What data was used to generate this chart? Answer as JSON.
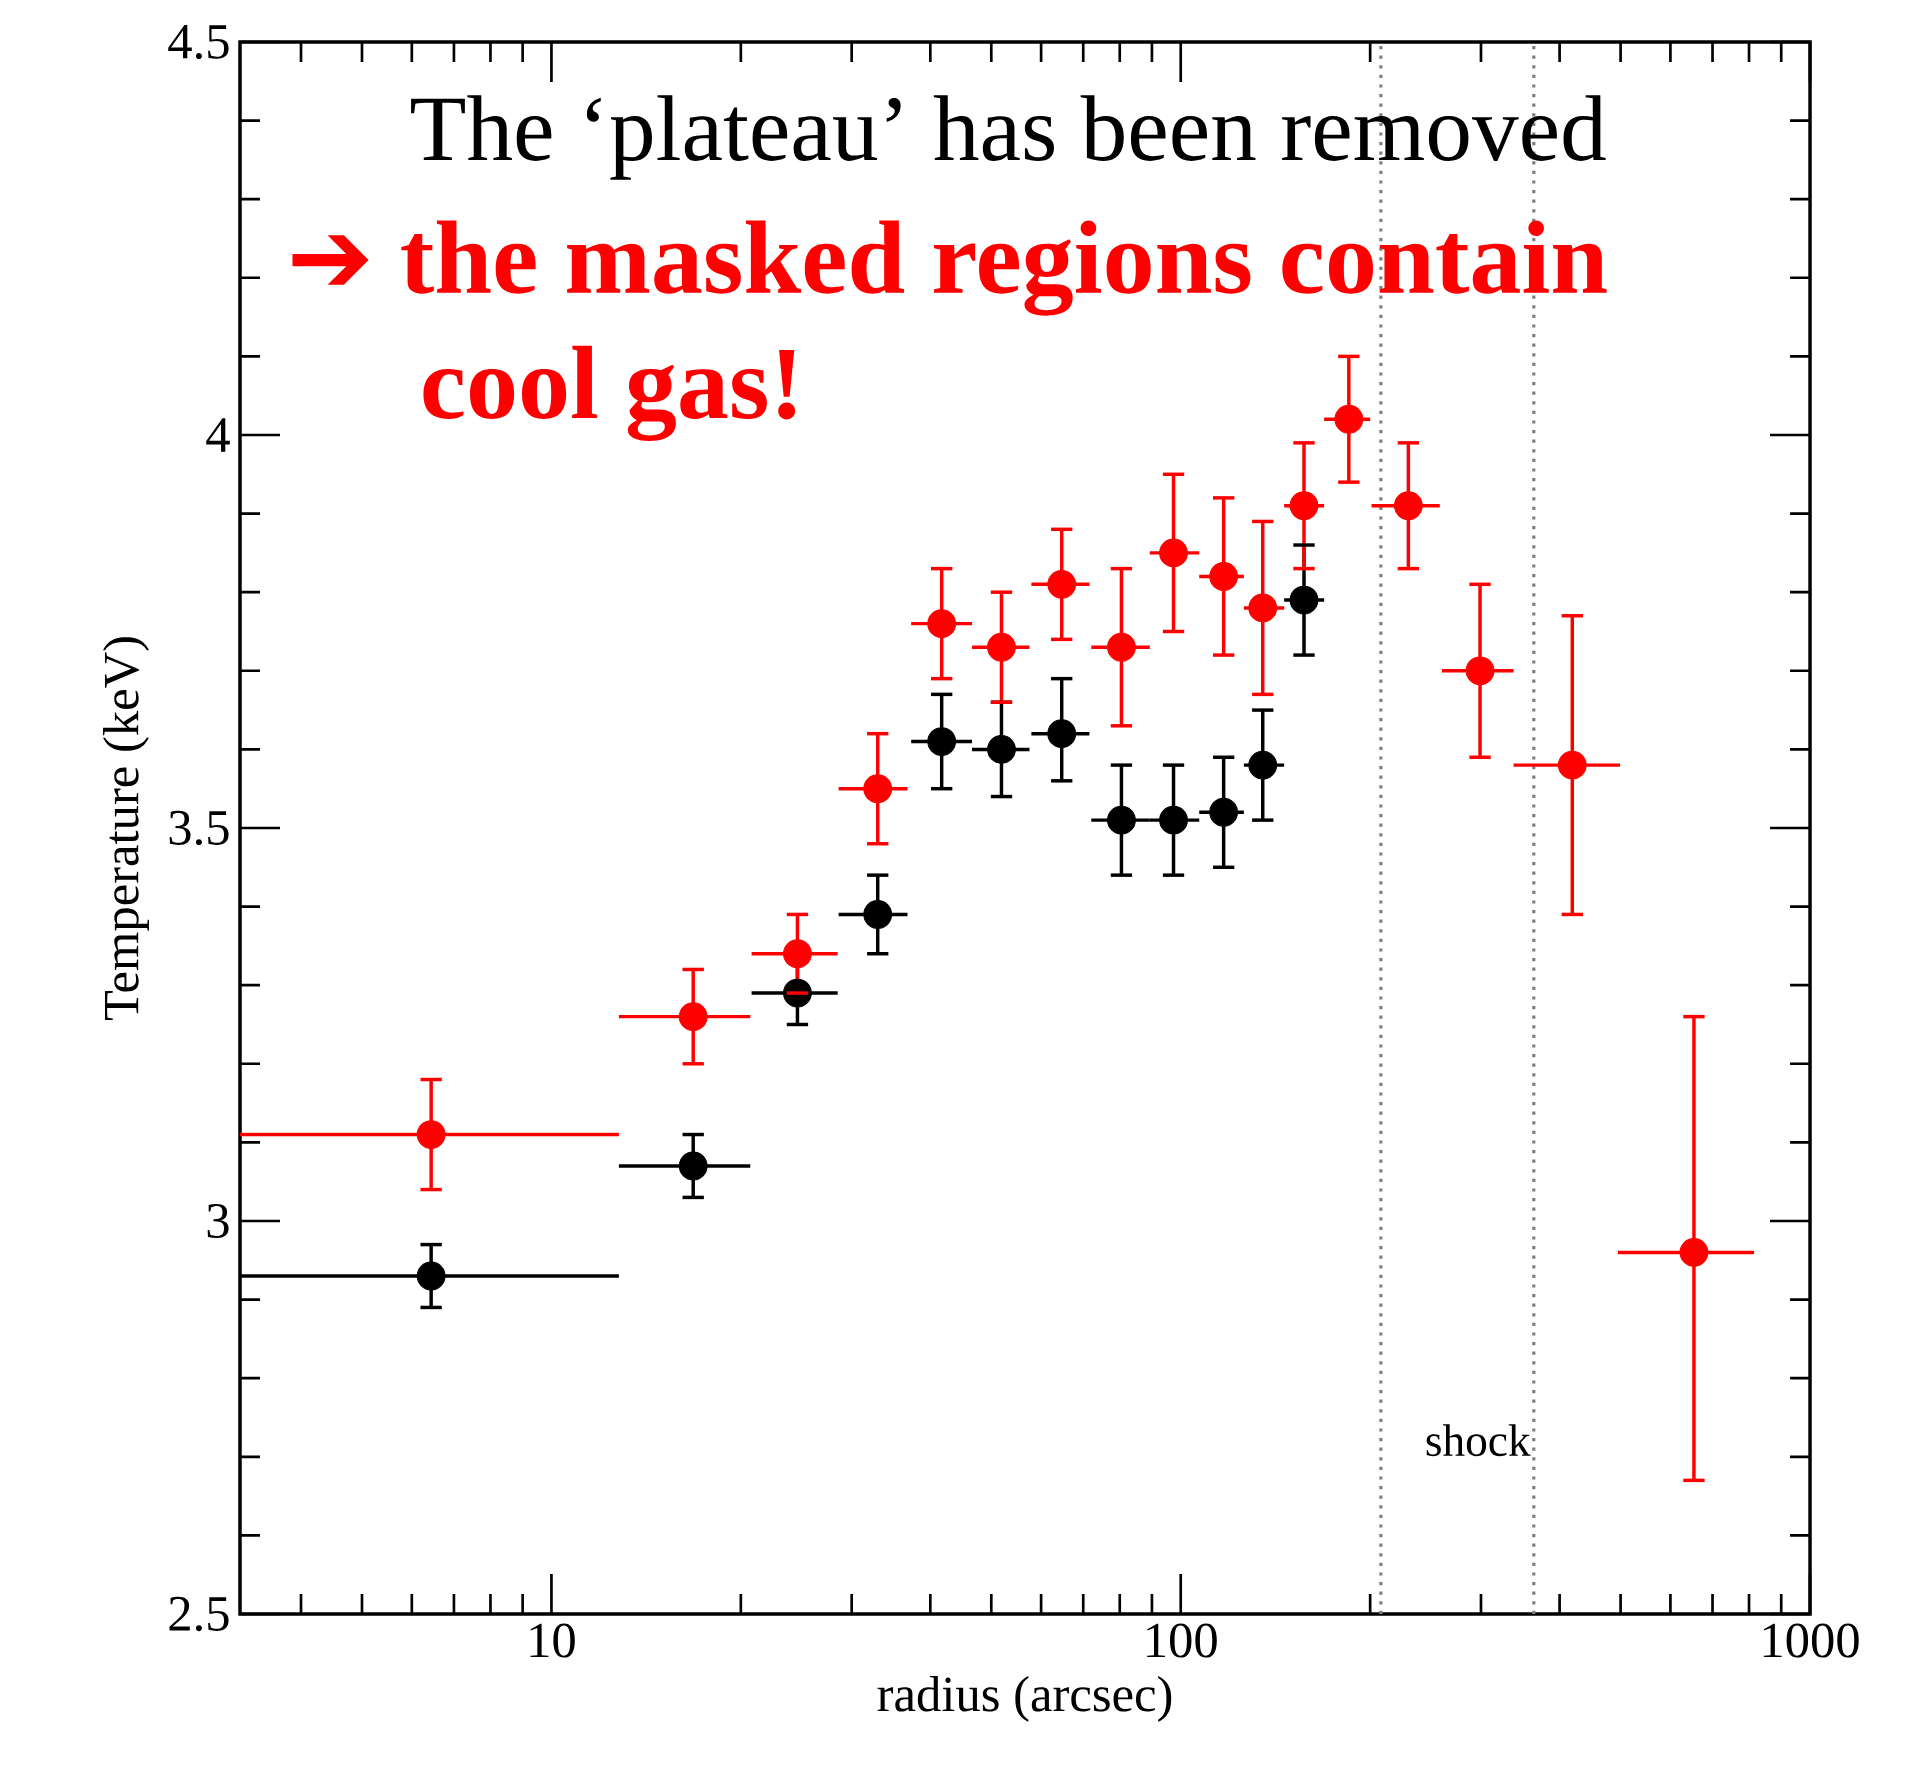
{
  "chart_data": {
    "type": "scatter",
    "xlabel": "radius (arcsec)",
    "ylabel": "Temperature (keV)",
    "log": "x",
    "marker": "circle",
    "xlim": [
      3.2,
      1000
    ],
    "ylim": [
      2.5,
      4.5
    ],
    "xticks": [
      10,
      100,
      1000
    ],
    "yticks": [
      2.5,
      3,
      3.5,
      4,
      4.5
    ],
    "annotations": [
      "The ‘plateau’ has been removed",
      "➔ the masked regions contain cool gas!"
    ],
    "ref_lines": [
      {
        "axis": "x",
        "value": 208,
        "line_style": "dotted",
        "color": "#808080"
      },
      {
        "axis": "x",
        "value": 364,
        "label": "shock",
        "line_style": "dotted",
        "color": "#808080"
      }
    ],
    "series": [
      {
        "color": "#000000",
        "x": [
          6.44,
          16.8,
          24.6,
          33.0,
          41.7,
          51.9,
          64.7,
          80.5,
          97.4,
          117,
          135,
          157
        ],
        "values": [
          2.93,
          3.07,
          3.29,
          3.39,
          3.61,
          3.6,
          3.62,
          3.51,
          3.51,
          3.52,
          3.58,
          3.79
        ],
        "errors": [
          [
            2.89,
            2.97
          ],
          [
            3.03,
            3.11
          ],
          [
            3.25,
            3.33
          ],
          [
            3.34,
            3.44
          ],
          [
            3.55,
            3.67
          ],
          [
            3.54,
            3.66
          ],
          [
            3.56,
            3.69
          ],
          [
            3.44,
            3.58
          ],
          [
            3.44,
            3.58
          ],
          [
            3.45,
            3.59
          ],
          [
            3.51,
            3.65
          ],
          [
            3.72,
            3.86
          ]
        ],
        "xerrors": [
          [
            3.2,
            12.8
          ],
          [
            12.8,
            20.7
          ],
          [
            20.8,
            28.5
          ],
          [
            28.6,
            36.8
          ],
          [
            37.3,
            46.6
          ],
          [
            46.6,
            57.5
          ],
          [
            57.9,
            71.6
          ],
          [
            72.1,
            89.3
          ],
          [
            89.3,
            107
          ],
          [
            107,
            126
          ],
          [
            126,
            146
          ],
          [
            146,
            169
          ]
        ]
      },
      {
        "color": "#ff0000",
        "x": [
          6.44,
          16.8,
          24.6,
          33.0,
          41.7,
          51.9,
          64.7,
          80.5,
          97.4,
          117,
          135,
          157,
          185,
          230,
          299,
          419,
          654
        ],
        "values": [
          3.11,
          3.26,
          3.34,
          3.55,
          3.76,
          3.73,
          3.81,
          3.73,
          3.85,
          3.82,
          3.78,
          3.91,
          4.02,
          3.91,
          3.7,
          3.58,
          2.96
        ],
        "errors": [
          [
            3.04,
            3.18
          ],
          [
            3.2,
            3.32
          ],
          [
            3.29,
            3.39
          ],
          [
            3.48,
            3.62
          ],
          [
            3.69,
            3.83
          ],
          [
            3.66,
            3.8
          ],
          [
            3.74,
            3.88
          ],
          [
            3.63,
            3.83
          ],
          [
            3.75,
            3.95
          ],
          [
            3.72,
            3.92
          ],
          [
            3.67,
            3.89
          ],
          [
            3.83,
            3.99
          ],
          [
            3.94,
            4.1
          ],
          [
            3.83,
            3.99
          ],
          [
            3.59,
            3.81
          ],
          [
            3.39,
            3.77
          ],
          [
            2.67,
            3.26
          ]
        ],
        "xerrors": [
          [
            3.2,
            12.8
          ],
          [
            12.8,
            20.7
          ],
          [
            20.8,
            28.5
          ],
          [
            28.6,
            36.8
          ],
          [
            37.3,
            46.6
          ],
          [
            46.6,
            57.5
          ],
          [
            57.9,
            71.6
          ],
          [
            72.1,
            89.3
          ],
          [
            89.3,
            107
          ],
          [
            107,
            126
          ],
          [
            126,
            146
          ],
          [
            146,
            169
          ],
          [
            169,
            200
          ],
          [
            201,
            258
          ],
          [
            260,
            338
          ],
          [
            338,
            499
          ],
          [
            495,
            815
          ]
        ]
      }
    ]
  }
}
